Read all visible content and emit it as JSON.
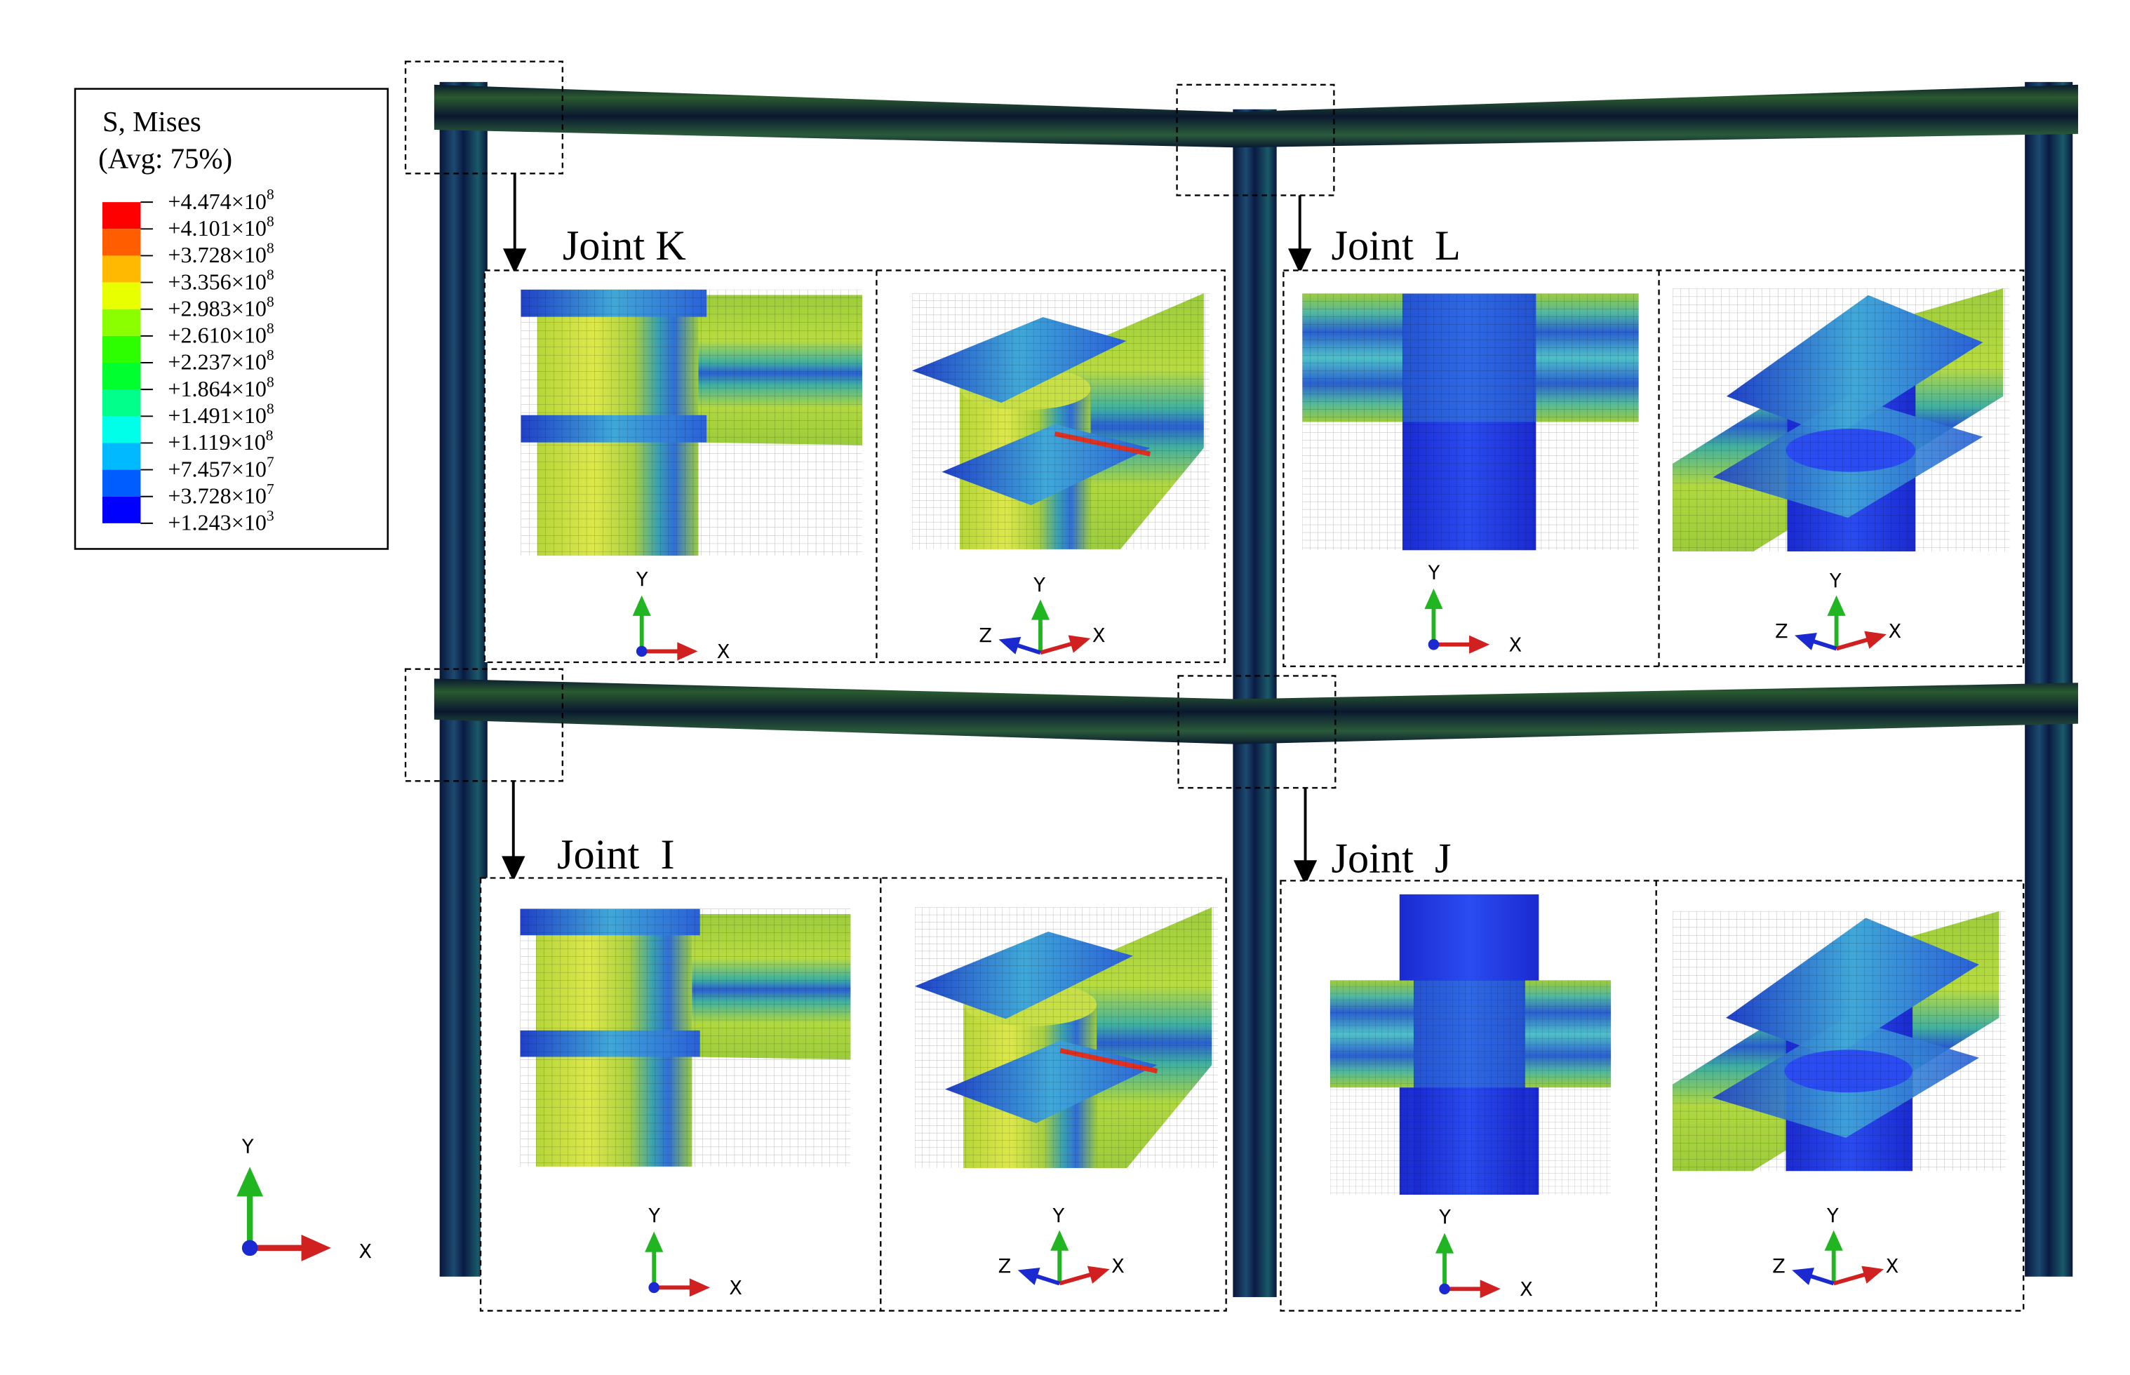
{
  "legend": {
    "title": "S, Mises",
    "subtitle": "(Avg: 75%)",
    "levels": [
      {
        "label": "+4.474×10",
        "exponent": "8"
      },
      {
        "label": "+4.101×10",
        "exponent": "8"
      },
      {
        "label": "+3.728×10",
        "exponent": "8"
      },
      {
        "label": "+3.356×10",
        "exponent": "8"
      },
      {
        "label": "+2.983×10",
        "exponent": "8"
      },
      {
        "label": "+2.610×10",
        "exponent": "8"
      },
      {
        "label": "+2.237×10",
        "exponent": "8"
      },
      {
        "label": "+1.864×10",
        "exponent": "8"
      },
      {
        "label": "+1.491×10",
        "exponent": "8"
      },
      {
        "label": "+1.119×10",
        "exponent": "8"
      },
      {
        "label": "+7.457×10",
        "exponent": "7"
      },
      {
        "label": "+3.728×10",
        "exponent": "7"
      },
      {
        "label": "+1.243×10",
        "exponent": "3"
      }
    ],
    "colors": [
      "#ff0000",
      "#ff5d00",
      "#ffb900",
      "#e8ff00",
      "#8bff00",
      "#2eff00",
      "#00ff2e",
      "#00ff8b",
      "#00ffe8",
      "#00b9ff",
      "#005dff",
      "#0000ff"
    ]
  },
  "joints": [
    "Joint K",
    "Joint  L",
    "Joint  I",
    "Joint  J"
  ],
  "axes": {
    "x": "X",
    "y": "Y",
    "z": "Z"
  }
}
